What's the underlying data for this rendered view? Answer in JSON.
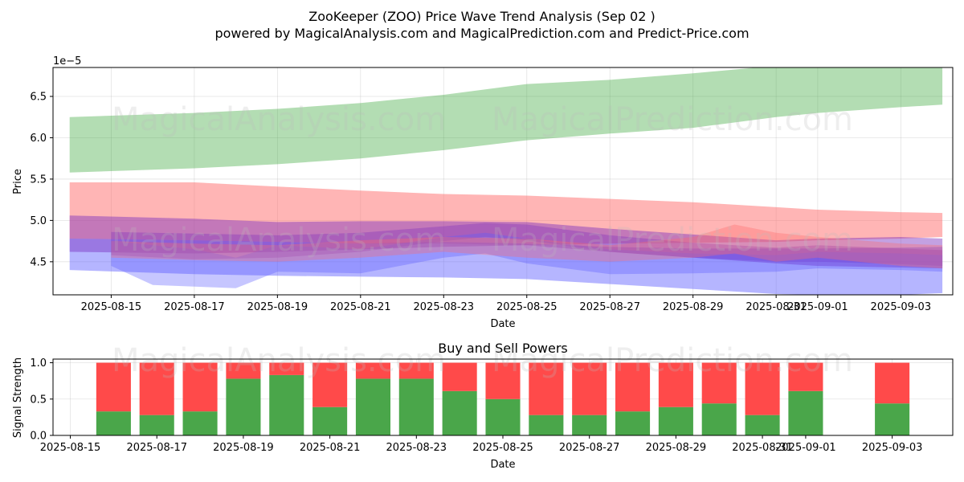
{
  "title": "ZooKeeper (ZOO) Price Wave Trend Analysis (Sep 02 )",
  "subtitle": "powered by MagicalAnalysis.com and MagicalPrediction.com and Predict-Price.com",
  "watermarks": [
    "MagicalAnalysis.com",
    "MagicalPrediction.com"
  ],
  "colors": {
    "green_band": "#2ca02c",
    "red_band": "#ff6b6b",
    "blue_band": "#5b5bff",
    "purple_band": "#7b2fbe",
    "buy": "#4aa64a",
    "sell": "#ff4a4a"
  },
  "chart_data": [
    {
      "type": "area",
      "xlabel": "Date",
      "ylabel": "Price",
      "y_scale_label": "1e−5",
      "x_range": [
        "2025-08-14",
        "2025-09-04"
      ],
      "ylim": [
        4.1,
        6.85
      ],
      "yticks": [
        4.5,
        5.0,
        5.5,
        6.0,
        6.5
      ],
      "ytick_labels": [
        "4.5",
        "5.0",
        "5.5",
        "6.0",
        "6.5"
      ],
      "xticks": [
        "2025-08-15",
        "2025-08-17",
        "2025-08-19",
        "2025-08-21",
        "2025-08-23",
        "2025-08-25",
        "2025-08-27",
        "2025-08-29",
        "2025-08-31",
        "2025-09-01",
        "2025-09-03"
      ],
      "xtick_labels": [
        "2025-08-15",
        "2025-08-17",
        "2025-08-19",
        "2025-08-21",
        "2025-08-23",
        "2025-08-25",
        "2025-08-27",
        "2025-08-29",
        "2025-08-31",
        "2025-09-01",
        "2025-09-03"
      ],
      "grid": true,
      "series": [
        {
          "color": "green",
          "x": [
            "2025-08-14",
            "2025-08-17",
            "2025-08-19",
            "2025-08-21",
            "2025-08-23",
            "2025-08-25",
            "2025-08-27",
            "2025-08-29",
            "2025-08-31",
            "2025-09-01",
            "2025-09-03",
            "2025-09-04"
          ],
          "upper": [
            6.25,
            6.3,
            6.35,
            6.42,
            6.52,
            6.65,
            6.7,
            6.78,
            6.87,
            6.92,
            6.95,
            6.85
          ],
          "lower": [
            5.58,
            5.63,
            5.68,
            5.75,
            5.85,
            5.97,
            6.05,
            6.12,
            6.25,
            6.3,
            6.37,
            6.4
          ]
        },
        {
          "color": "red",
          "x": [
            "2025-08-14",
            "2025-08-17",
            "2025-08-19",
            "2025-08-21",
            "2025-08-23",
            "2025-08-25",
            "2025-08-27",
            "2025-08-29",
            "2025-08-31",
            "2025-09-01",
            "2025-09-03",
            "2025-09-04"
          ],
          "upper": [
            5.46,
            5.46,
            5.41,
            5.36,
            5.32,
            5.3,
            5.26,
            5.22,
            5.16,
            5.13,
            5.1,
            5.09
          ],
          "lower": [
            4.78,
            4.76,
            4.74,
            4.72,
            4.72,
            4.7,
            4.72,
            4.73,
            4.74,
            4.76,
            4.78,
            4.8
          ]
        },
        {
          "color": "blue",
          "x": [
            "2025-08-14",
            "2025-08-17",
            "2025-08-19",
            "2025-08-21",
            "2025-08-23",
            "2025-08-25",
            "2025-08-27",
            "2025-08-29",
            "2025-08-31",
            "2025-09-01",
            "2025-09-03",
            "2025-09-04"
          ],
          "upper": [
            4.78,
            4.76,
            4.74,
            4.72,
            4.74,
            4.72,
            4.68,
            4.66,
            4.66,
            4.66,
            4.67,
            4.68
          ],
          "lower": [
            4.4,
            4.35,
            4.33,
            4.32,
            4.31,
            4.29,
            4.23,
            4.17,
            4.11,
            4.1,
            4.1,
            4.12
          ]
        },
        {
          "color": "purple",
          "x": [
            "2025-08-14",
            "2025-08-17",
            "2025-08-19",
            "2025-08-21",
            "2025-08-23",
            "2025-08-25",
            "2025-08-27",
            "2025-08-29",
            "2025-08-31",
            "2025-09-01",
            "2025-09-03",
            "2025-09-04"
          ],
          "upper": [
            5.06,
            5.02,
            4.98,
            4.99,
            4.99,
            4.98,
            4.9,
            4.83,
            4.76,
            4.78,
            4.8,
            4.78
          ],
          "lower": [
            4.62,
            4.6,
            4.62,
            4.65,
            4.68,
            4.7,
            4.62,
            4.55,
            4.48,
            4.45,
            4.43,
            4.42
          ]
        },
        {
          "color": "purple",
          "x": [
            "2025-08-15",
            "2025-08-17",
            "2025-08-19",
            "2025-08-21",
            "2025-08-23",
            "2025-08-24",
            "2025-08-25",
            "2025-08-27",
            "2025-08-29",
            "2025-08-31",
            "2025-09-01",
            "2025-09-03",
            "2025-09-04"
          ],
          "upper": [
            4.86,
            4.84,
            4.82,
            4.85,
            4.93,
            4.97,
            4.95,
            4.82,
            4.73,
            4.67,
            4.7,
            4.66,
            4.64
          ],
          "lower": [
            4.58,
            4.53,
            4.55,
            4.62,
            4.75,
            4.8,
            4.76,
            4.62,
            4.55,
            4.5,
            4.5,
            4.47,
            4.45
          ]
        },
        {
          "color": "blue",
          "x": [
            "2025-08-15",
            "2025-08-16",
            "2025-08-17",
            "2025-08-18",
            "2025-08-19",
            "2025-08-21",
            "2025-08-23",
            "2025-08-24",
            "2025-08-25",
            "2025-08-27",
            "2025-08-29",
            "2025-08-31",
            "2025-09-01",
            "2025-09-03",
            "2025-09-04"
          ],
          "upper": [
            4.75,
            4.7,
            4.65,
            4.55,
            4.7,
            4.65,
            4.8,
            4.85,
            4.78,
            4.65,
            4.6,
            4.58,
            4.62,
            4.6,
            4.58
          ],
          "lower": [
            4.45,
            4.22,
            4.2,
            4.18,
            4.38,
            4.36,
            4.55,
            4.6,
            4.48,
            4.35,
            4.36,
            4.38,
            4.42,
            4.4,
            4.38
          ]
        },
        {
          "color": "red",
          "x": [
            "2025-08-15",
            "2025-08-17",
            "2025-08-19",
            "2025-08-21",
            "2025-08-23",
            "2025-08-25",
            "2025-08-27",
            "2025-08-29",
            "2025-08-30",
            "2025-08-31",
            "2025-09-01",
            "2025-09-03",
            "2025-09-04"
          ],
          "upper": [
            4.75,
            4.72,
            4.7,
            4.76,
            4.8,
            4.78,
            4.7,
            4.8,
            4.95,
            4.85,
            4.8,
            4.72,
            4.7
          ],
          "lower": [
            4.55,
            4.52,
            4.5,
            4.55,
            4.62,
            4.55,
            4.5,
            4.55,
            4.6,
            4.5,
            4.55,
            4.45,
            4.42
          ]
        }
      ]
    },
    {
      "type": "bar",
      "stacked": true,
      "title": "Buy and Sell Powers",
      "xlabel": "Date",
      "ylabel": "Signal Strength",
      "ylim": [
        0,
        1.05
      ],
      "yticks": [
        0.0,
        0.5,
        1.0
      ],
      "ytick_labels": [
        "0.0",
        "0.5",
        "1.0"
      ],
      "x_range": [
        "2025-08-15",
        "2025-09-04"
      ],
      "xticks": [
        "2025-08-15",
        "2025-08-17",
        "2025-08-19",
        "2025-08-21",
        "2025-08-23",
        "2025-08-25",
        "2025-08-27",
        "2025-08-29",
        "2025-08-31",
        "2025-09-01",
        "2025-09-03"
      ],
      "xtick_labels": [
        "2025-08-15",
        "2025-08-17",
        "2025-08-19",
        "2025-08-21",
        "2025-08-23",
        "2025-08-25",
        "2025-08-27",
        "2025-08-29",
        "2025-08-31",
        "2025-09-01",
        "2025-09-03"
      ],
      "grid": true,
      "categories": [
        "2025-08-16",
        "2025-08-17",
        "2025-08-18",
        "2025-08-19",
        "2025-08-20",
        "2025-08-21",
        "2025-08-22",
        "2025-08-23",
        "2025-08-24",
        "2025-08-25",
        "2025-08-26",
        "2025-08-27",
        "2025-08-28",
        "2025-08-29",
        "2025-08-30",
        "2025-08-31",
        "2025-09-01",
        "2025-09-03"
      ],
      "series": [
        {
          "role": "buy",
          "values": [
            0.33,
            0.28,
            0.33,
            0.78,
            0.83,
            0.39,
            0.78,
            0.78,
            0.61,
            0.5,
            0.28,
            0.28,
            0.33,
            0.39,
            0.44,
            0.28,
            0.61,
            0.44
          ]
        },
        {
          "role": "sell",
          "values": [
            0.67,
            0.72,
            0.67,
            0.22,
            0.17,
            0.61,
            0.22,
            0.22,
            0.39,
            0.5,
            0.72,
            0.72,
            0.67,
            0.61,
            0.56,
            0.72,
            0.39,
            0.56
          ]
        }
      ]
    }
  ]
}
